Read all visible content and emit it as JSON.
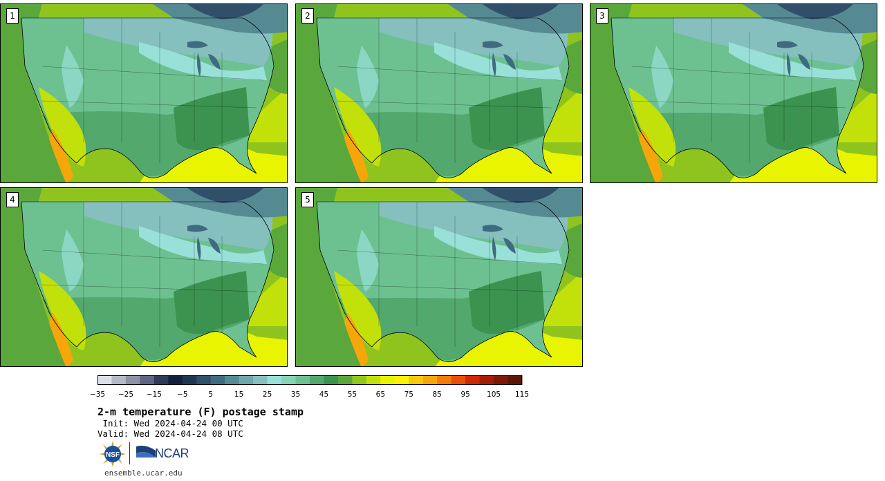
{
  "panels": [
    {
      "label": "1"
    },
    {
      "label": "2"
    },
    {
      "label": "3"
    },
    {
      "label": "4"
    },
    {
      "label": "5"
    }
  ],
  "colorbar": {
    "colors": [
      "#dcdfe8",
      "#b5b9c6",
      "#8c93a6",
      "#5e6680",
      "#2f3b57",
      "#12203a",
      "#21374f",
      "#30506a",
      "#3f6b80",
      "#558a93",
      "#6fa6a8",
      "#85c0bf",
      "#99e0d9",
      "#86d4b4",
      "#6dc190",
      "#53a86e",
      "#3b934f",
      "#5aa83c",
      "#8ec81c",
      "#c2e10a",
      "#e9f500",
      "#fff200",
      "#f8c80a",
      "#f7a60a",
      "#f57a0a",
      "#ea5005",
      "#cc2a00",
      "#a61c06",
      "#7f1808",
      "#5c1608"
    ],
    "tick_labels": [
      "−35",
      "−25",
      "−15",
      "−5",
      "5",
      "15",
      "25",
      "35",
      "45",
      "55",
      "65",
      "75",
      "85",
      "95",
      "105",
      "115"
    ]
  },
  "title": "2-m temperature (F) postage stamp",
  "init": " Init: Wed 2024-04-24 00 UTC",
  "valid": "Valid: Wed 2024-04-24 08 UTC",
  "logos": {
    "nsf": "NSF",
    "ncar": "NCAR"
  },
  "footer": "ensemble.ucar.edu"
}
